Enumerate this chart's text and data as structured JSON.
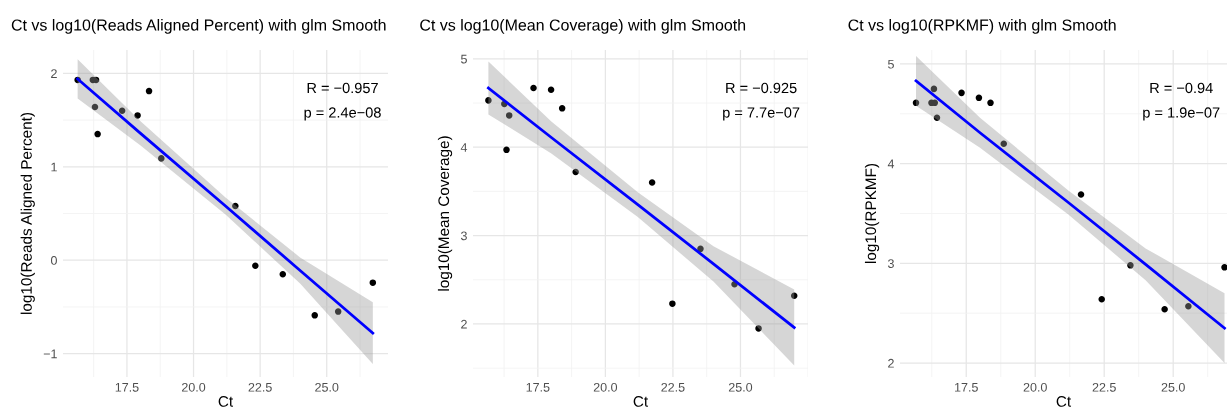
{
  "chart_data": [
    {
      "type": "scatter",
      "title": "Ct vs log10(Reads Aligned Percent) with glm Smooth",
      "xlabel": "Ct",
      "ylabel": "log10(Reads Aligned Percent)",
      "xlim": [
        15.1,
        27.3
      ],
      "ylim": [
        -1.25,
        2.25
      ],
      "xticks": [
        {
          "value": 17.5,
          "label": "17.5"
        },
        {
          "value": 20,
          "label": "20.0"
        },
        {
          "value": 22.5,
          "label": "22.5"
        },
        {
          "value": 25,
          "label": "25.0"
        }
      ],
      "yticks": [
        {
          "value": -1,
          "label": "−1"
        },
        0,
        1,
        2
      ],
      "grid": true,
      "annotations": [
        "R = −0.957",
        "p = 2.4e−08"
      ],
      "series": [
        {
          "type": "scatter",
          "color": "#000000",
          "x": [
            15.65,
            16.22,
            16.34,
            16.3,
            16.4,
            17.32,
            17.9,
            18.33,
            18.79,
            21.57,
            22.32,
            23.35,
            24.55,
            25.43,
            26.73
          ],
          "values": [
            1.93,
            1.93,
            1.93,
            1.64,
            1.35,
            1.6,
            1.55,
            1.81,
            1.09,
            0.58,
            -0.06,
            -0.15,
            -0.59,
            -0.55,
            -0.24
          ]
        },
        {
          "type": "line",
          "color": "#0000ff",
          "x": [
            15.65,
            18,
            21.2,
            24,
            26.73
          ],
          "values": [
            1.94,
            1.36,
            0.58,
            -0.11,
            -0.78
          ],
          "lower": [
            1.73,
            1.23,
            0.49,
            -0.25,
            -1.11
          ],
          "upper": [
            2.15,
            1.49,
            0.67,
            0.03,
            -0.45
          ]
        }
      ]
    },
    {
      "type": "scatter",
      "title": "Ct vs log10(Mean Coverage) with glm Smooth",
      "xlabel": "Ct",
      "ylabel": "log10(Mean Coverage)",
      "xlim": [
        15.1,
        27.5
      ],
      "ylim": [
        1.4,
        5.1
      ],
      "xticks": [
        {
          "value": 17.5,
          "label": "17.5"
        },
        {
          "value": 20,
          "label": "20.0"
        },
        {
          "value": 22.5,
          "label": "22.5"
        },
        {
          "value": 25,
          "label": "25.0"
        }
      ],
      "yticks": [
        2,
        3,
        4,
        5
      ],
      "grid": true,
      "annotations": [
        "R = −0.925",
        "p = 7.7e−07"
      ],
      "series": [
        {
          "type": "scatter",
          "color": "#000000",
          "x": [
            15.67,
            16.26,
            16.44,
            16.34,
            17.34,
            17.99,
            18.4,
            18.9,
            21.73,
            22.48,
            23.52,
            24.78,
            25.67,
            26.99
          ],
          "values": [
            4.53,
            4.49,
            4.36,
            3.97,
            4.67,
            4.65,
            4.44,
            3.72,
            3.6,
            2.23,
            2.85,
            2.45,
            1.95,
            2.32
          ]
        },
        {
          "type": "line",
          "color": "#0000ff",
          "x": [
            15.67,
            18,
            21.2,
            24,
            26.99
          ],
          "values": [
            4.67,
            4.11,
            3.35,
            2.68,
            1.96
          ],
          "lower": [
            4.37,
            3.93,
            3.21,
            2.48,
            1.53
          ],
          "upper": [
            4.97,
            4.29,
            3.49,
            2.88,
            2.39
          ]
        }
      ]
    },
    {
      "type": "scatter",
      "title": "Ct vs log10(RPKMF) with glm Smooth",
      "xlabel": "Ct",
      "ylabel": "log10(RPKMF)",
      "xlim": [
        15.1,
        26.95
      ],
      "ylim": [
        1.86,
        5.14
      ],
      "xticks": [
        {
          "value": 17.5,
          "label": "17.5"
        },
        {
          "value": 20,
          "label": "20.0"
        },
        {
          "value": 22.5,
          "label": "22.5"
        },
        {
          "value": 25,
          "label": "25.0"
        }
      ],
      "yticks": [
        2,
        3,
        4,
        5
      ],
      "grid": true,
      "annotations": [
        "R = −0.94",
        "p = 1.9e−07"
      ],
      "series": [
        {
          "type": "scatter",
          "color": "#000000",
          "x": [
            15.68,
            16.24,
            16.36,
            16.33,
            16.44,
            17.33,
            17.96,
            18.38,
            18.86,
            21.66,
            22.41,
            23.45,
            24.69,
            25.55,
            26.86
          ],
          "values": [
            4.61,
            4.61,
            4.61,
            4.75,
            4.46,
            4.71,
            4.66,
            4.61,
            4.2,
            3.69,
            2.64,
            2.98,
            2.54,
            2.57,
            2.96
          ]
        },
        {
          "type": "line",
          "color": "#0000ff",
          "x": [
            15.68,
            18,
            21.2,
            24,
            26.86
          ],
          "values": [
            4.83,
            4.31,
            3.61,
            2.99,
            2.35
          ],
          "lower": [
            4.58,
            4.16,
            3.49,
            2.83,
            2.0
          ],
          "upper": [
            5.08,
            4.46,
            3.73,
            3.15,
            2.7
          ]
        }
      ]
    }
  ]
}
